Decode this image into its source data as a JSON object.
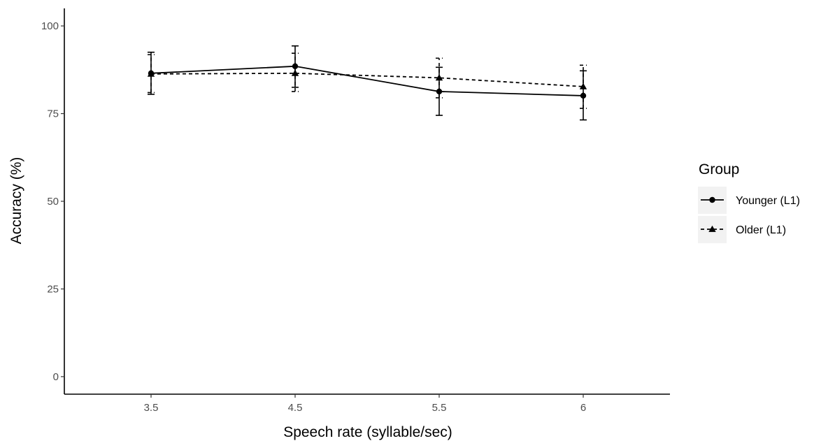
{
  "chart_data": {
    "type": "line",
    "xlabel": "Speech rate (syllable/sec)",
    "ylabel": "Accuracy (%)",
    "categories": [
      "3.5",
      "4.5",
      "5.5",
      "6"
    ],
    "ylim": [
      -5,
      105
    ],
    "yticks": [
      0,
      25,
      50,
      75,
      100
    ],
    "grid": false,
    "legend": {
      "title": "Group",
      "position": "right"
    },
    "series": [
      {
        "name": "Younger (L1)",
        "line": "solid",
        "marker": "circle",
        "color": "#000000",
        "values": [
          86.5,
          88.5,
          81.3,
          80.1
        ],
        "error_low": [
          80.5,
          82.5,
          74.5,
          73.2
        ],
        "error_high": [
          92.5,
          94.3,
          88.2,
          87.2
        ]
      },
      {
        "name": "Older (L1)",
        "line": "dashed",
        "marker": "triangle",
        "color": "#000000",
        "values": [
          86.3,
          86.5,
          85.2,
          82.7
        ],
        "error_low": [
          81.0,
          81.3,
          79.5,
          76.5
        ],
        "error_high": [
          91.8,
          92.2,
          90.8,
          88.8
        ]
      }
    ]
  }
}
